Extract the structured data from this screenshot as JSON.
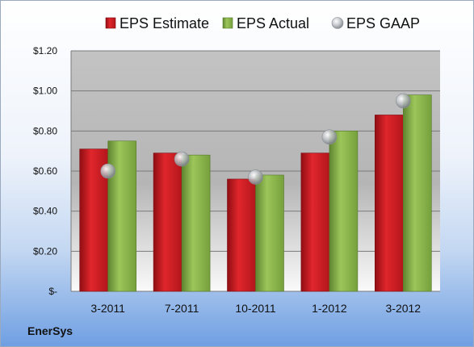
{
  "company": "EnerSys",
  "chart_data": {
    "type": "bar",
    "categories": [
      "3-2011",
      "7-2011",
      "10-2011",
      "1-2012",
      "3-2012"
    ],
    "series": [
      {
        "name": "EPS Estimate",
        "kind": "bar",
        "color": "#c0191e",
        "values": [
          0.71,
          0.69,
          0.56,
          0.69,
          0.88
        ]
      },
      {
        "name": "EPS Actual",
        "kind": "bar",
        "color": "#86b24a",
        "values": [
          0.75,
          0.68,
          0.58,
          0.8,
          0.98
        ]
      },
      {
        "name": "EPS GAAP",
        "kind": "marker",
        "color": "#b4b8bd",
        "values": [
          0.6,
          0.66,
          0.57,
          0.77,
          0.95
        ]
      }
    ],
    "yticks": [
      {
        "value": 0,
        "label": "$-"
      },
      {
        "value": 0.2,
        "label": "$0.20"
      },
      {
        "value": 0.4,
        "label": "$0.40"
      },
      {
        "value": 0.6,
        "label": "$0.60"
      },
      {
        "value": 0.8,
        "label": "$0.80"
      },
      {
        "value": 1.0,
        "label": "$1.00"
      },
      {
        "value": 1.2,
        "label": "$1.20"
      }
    ],
    "ylim": [
      0,
      1.2
    ],
    "grid": true,
    "legend": "top"
  }
}
